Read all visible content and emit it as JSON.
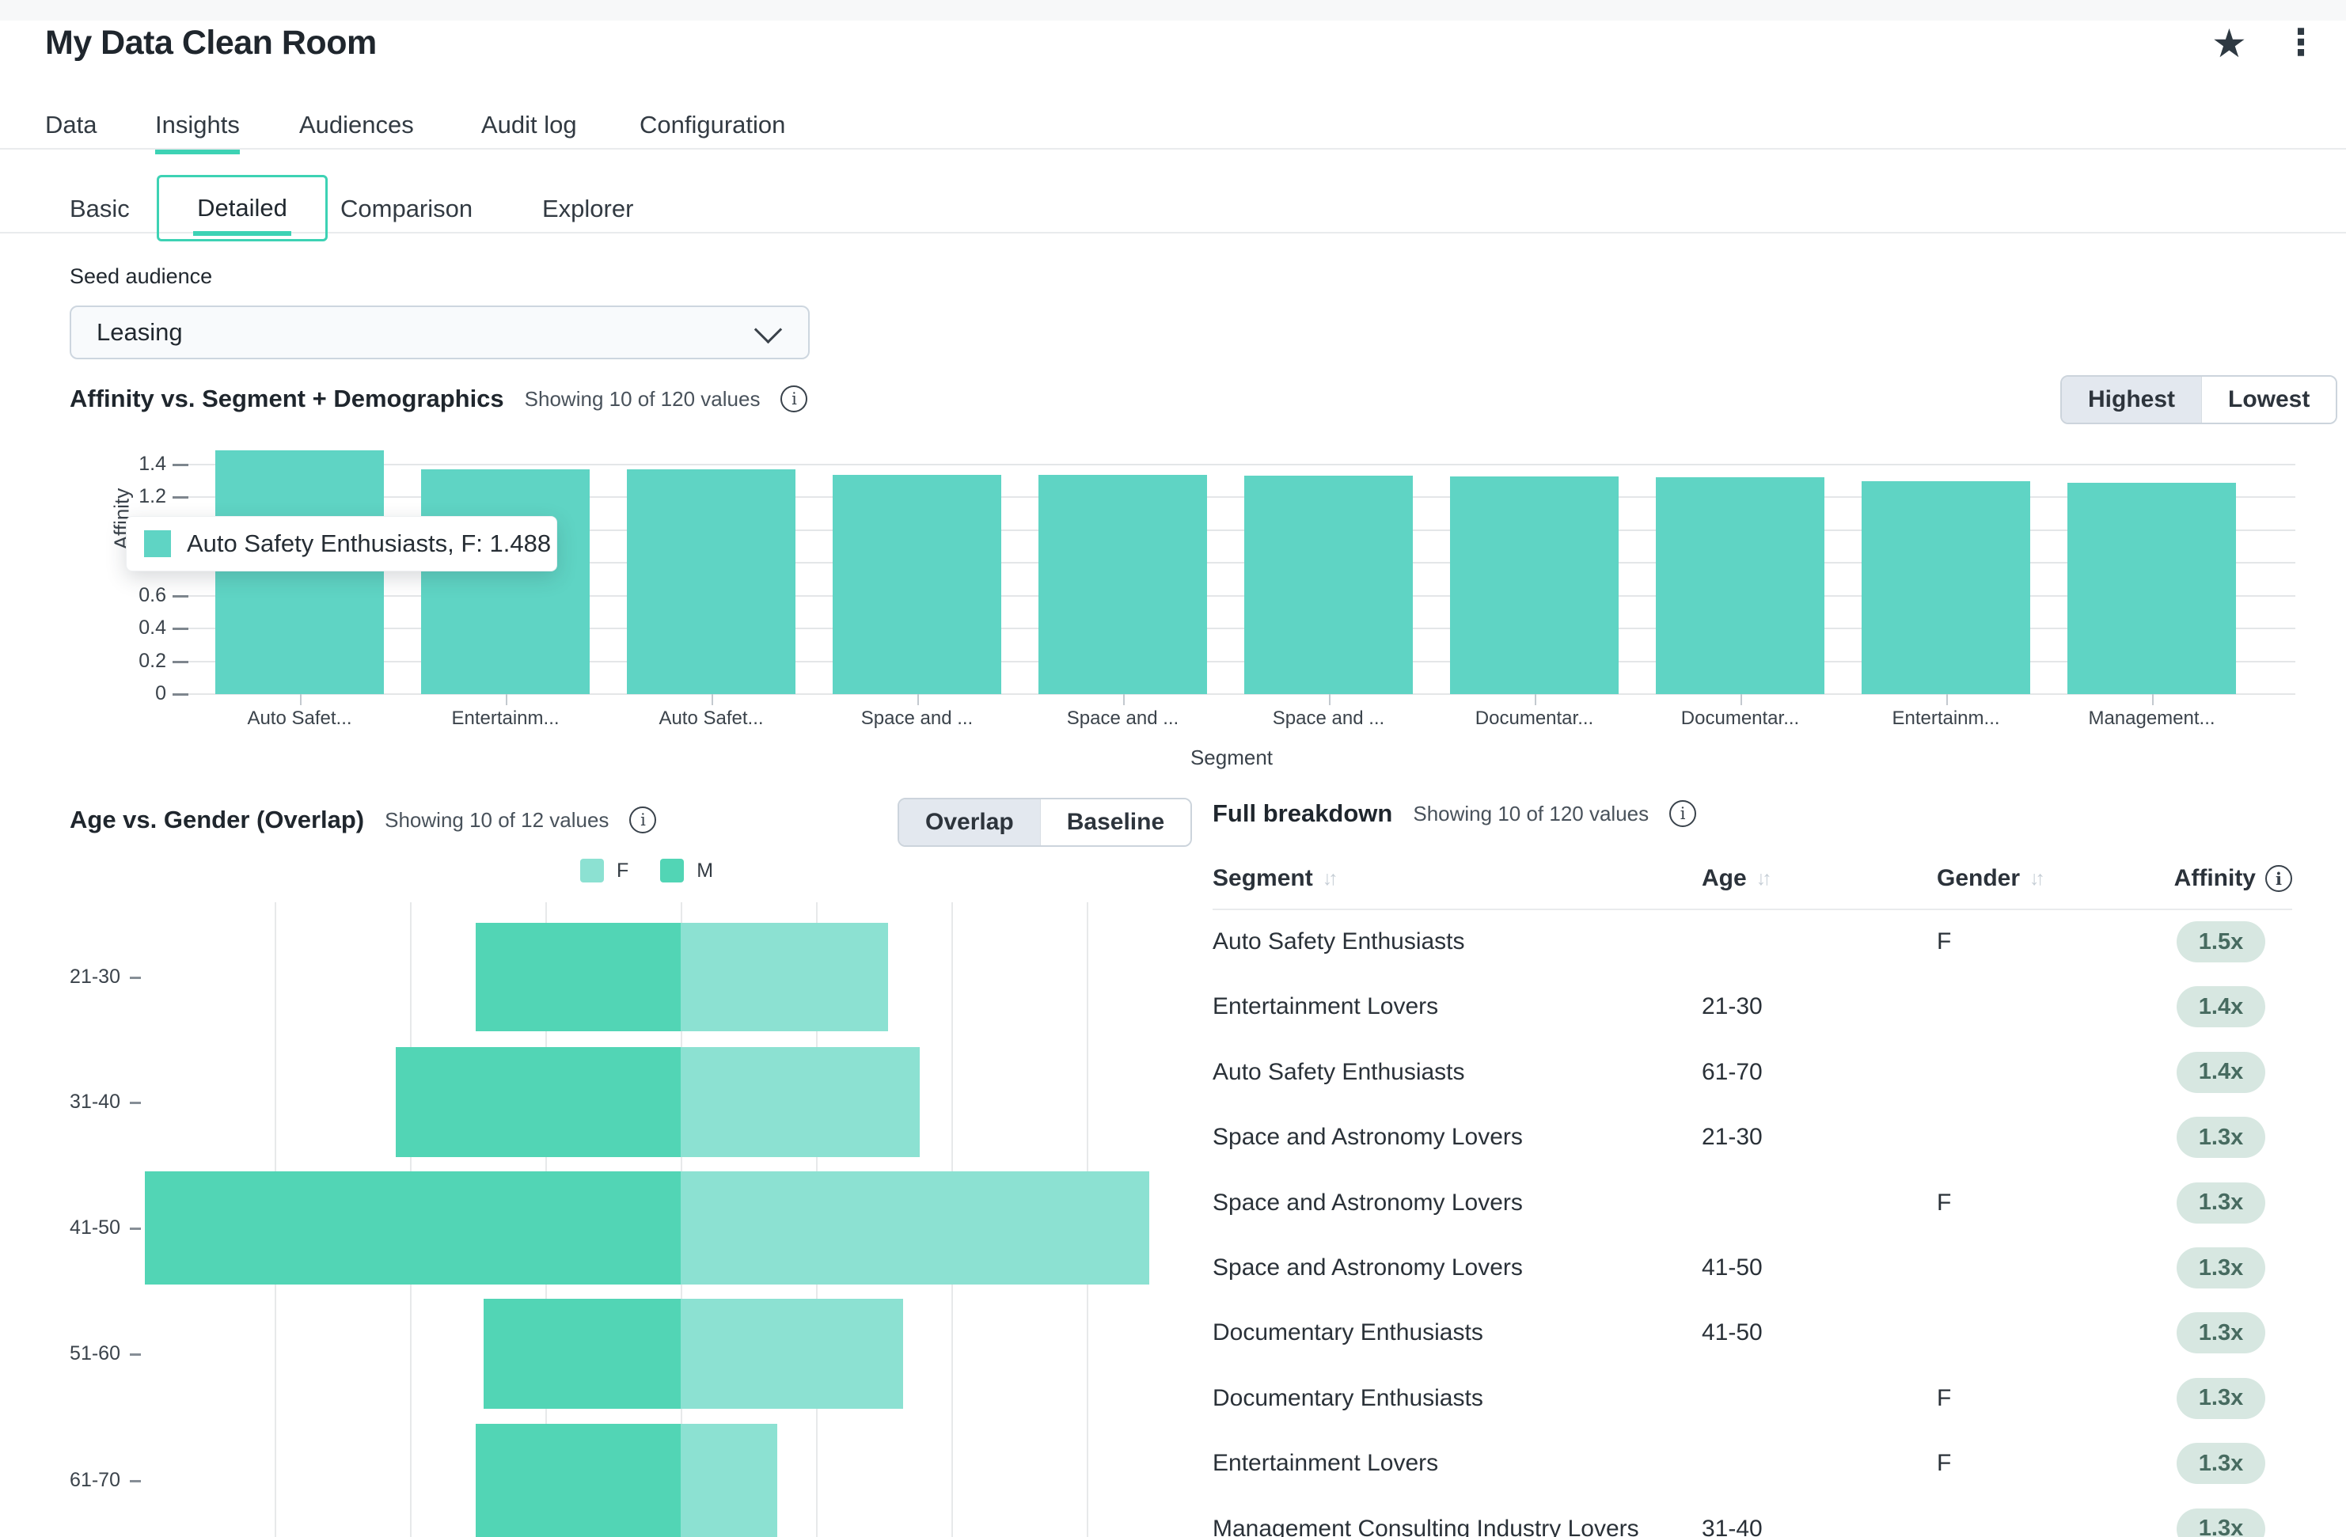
{
  "app": {
    "title": "My Data Clean Room"
  },
  "icons": {
    "star": "★",
    "more": "⋮",
    "info": "i",
    "sort": "↓↑"
  },
  "tabs": {
    "items": [
      {
        "label": "Data",
        "active": false
      },
      {
        "label": "Insights",
        "active": true
      },
      {
        "label": "Audiences",
        "active": false
      },
      {
        "label": "Audit log",
        "active": false
      },
      {
        "label": "Configuration",
        "active": false
      }
    ]
  },
  "subtabs": {
    "items": [
      {
        "label": "Basic",
        "active": false
      },
      {
        "label": "Detailed",
        "active": true
      },
      {
        "label": "Comparison",
        "active": false
      },
      {
        "label": "Explorer",
        "active": false
      }
    ]
  },
  "seed_audience": {
    "label": "Seed audience",
    "value": "Leasing"
  },
  "affinity_section": {
    "title": "Affinity vs. Segment + Demographics",
    "meta": "Showing 10 of 120 values",
    "toggle": {
      "options": [
        "Highest",
        "Lowest"
      ],
      "selected": "Highest"
    }
  },
  "age_gender_section": {
    "title": "Age vs. Gender (Overlap)",
    "meta": "Showing 10 of 12 values",
    "toggle": {
      "options": [
        "Overlap",
        "Baseline"
      ],
      "selected": "Overlap"
    }
  },
  "breakdown": {
    "title": "Full breakdown",
    "meta": "Showing 10 of 120 values",
    "columns": [
      "Segment",
      "Age",
      "Gender",
      "Affinity"
    ],
    "rows": [
      {
        "segment": "Auto Safety Enthusiasts",
        "age": "",
        "gender": "F",
        "affinity": "1.5x"
      },
      {
        "segment": "Entertainment Lovers",
        "age": "21-30",
        "gender": "",
        "affinity": "1.4x"
      },
      {
        "segment": "Auto Safety Enthusiasts",
        "age": "61-70",
        "gender": "",
        "affinity": "1.4x"
      },
      {
        "segment": "Space and Astronomy Lovers",
        "age": "21-30",
        "gender": "",
        "affinity": "1.3x"
      },
      {
        "segment": "Space and Astronomy Lovers",
        "age": "",
        "gender": "F",
        "affinity": "1.3x"
      },
      {
        "segment": "Space and Astronomy Lovers",
        "age": "41-50",
        "gender": "",
        "affinity": "1.3x"
      },
      {
        "segment": "Documentary Enthusiasts",
        "age": "41-50",
        "gender": "",
        "affinity": "1.3x"
      },
      {
        "segment": "Documentary Enthusiasts",
        "age": "",
        "gender": "F",
        "affinity": "1.3x"
      },
      {
        "segment": "Entertainment Lovers",
        "age": "",
        "gender": "F",
        "affinity": "1.3x"
      },
      {
        "segment": "Management Consulting Industry Lovers",
        "age": "31-40",
        "gender": "",
        "affinity": "1.3x"
      }
    ]
  },
  "chart_data": [
    {
      "type": "bar",
      "title": "Affinity vs. Segment + Demographics",
      "ylabel": "Affinity",
      "xlabel": "Segment",
      "ylim": [
        0,
        1.55
      ],
      "yticks": [
        "0",
        "0.2",
        "0.4",
        "0.6",
        "0.8",
        "1",
        "1.2",
        "1.4"
      ],
      "categories": [
        "Auto Safet...",
        "Entertainm...",
        "Auto Safet...",
        "Space and ...",
        "Space and ...",
        "Space and ...",
        "Documentar...",
        "Documentar...",
        "Entertainm...",
        "Management..."
      ],
      "values": [
        1.488,
        1.372,
        1.37,
        1.338,
        1.336,
        1.33,
        1.328,
        1.32,
        1.3,
        1.29
      ],
      "tooltip": "Auto Safety Enthusiasts, F: 1.488",
      "grid": "on",
      "legend_position": "none"
    },
    {
      "type": "bar-bidirectional",
      "title": "Age vs. Gender (Overlap)",
      "categories": [
        "21-30",
        "31-40",
        "41-50",
        "51-60",
        "61-70"
      ],
      "series": [
        {
          "name": "M",
          "values": [
            1.51,
            2.1,
            3.95,
            1.45,
            1.51
          ]
        },
        {
          "name": "F",
          "values": [
            1.53,
            1.76,
            3.45,
            1.64,
            0.71
          ]
        }
      ],
      "legend": [
        "F",
        "M"
      ],
      "legend_position": "top",
      "grid": "on"
    }
  ],
  "colors": {
    "accent": "#3dd2b4",
    "bar": "#5fd4c4",
    "male": "#52d5b5",
    "female": "#8ce1d2",
    "badge_bg": "#d7e7e1",
    "badge_text": "#476b60"
  }
}
